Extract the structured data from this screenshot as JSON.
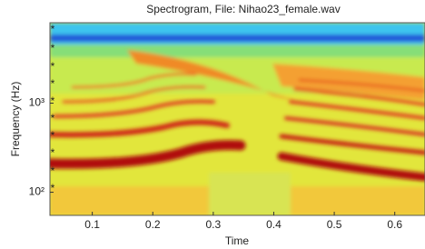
{
  "chart_data": {
    "type": "spectrogram",
    "title": "Spectrogram, File: Nihao23_female.wav",
    "xlabel": "Time",
    "ylabel": "Frequency (Hz)",
    "xlim": [
      0.03,
      0.65
    ],
    "xticks": [
      0.1,
      0.2,
      0.3,
      0.4,
      0.5,
      0.6
    ],
    "ylim": [
      55,
      8000
    ],
    "yscale": "log",
    "yticks": [
      {
        "value": 100,
        "label": "10²"
      },
      {
        "value": 1000,
        "label": "10³"
      }
    ]
  }
}
